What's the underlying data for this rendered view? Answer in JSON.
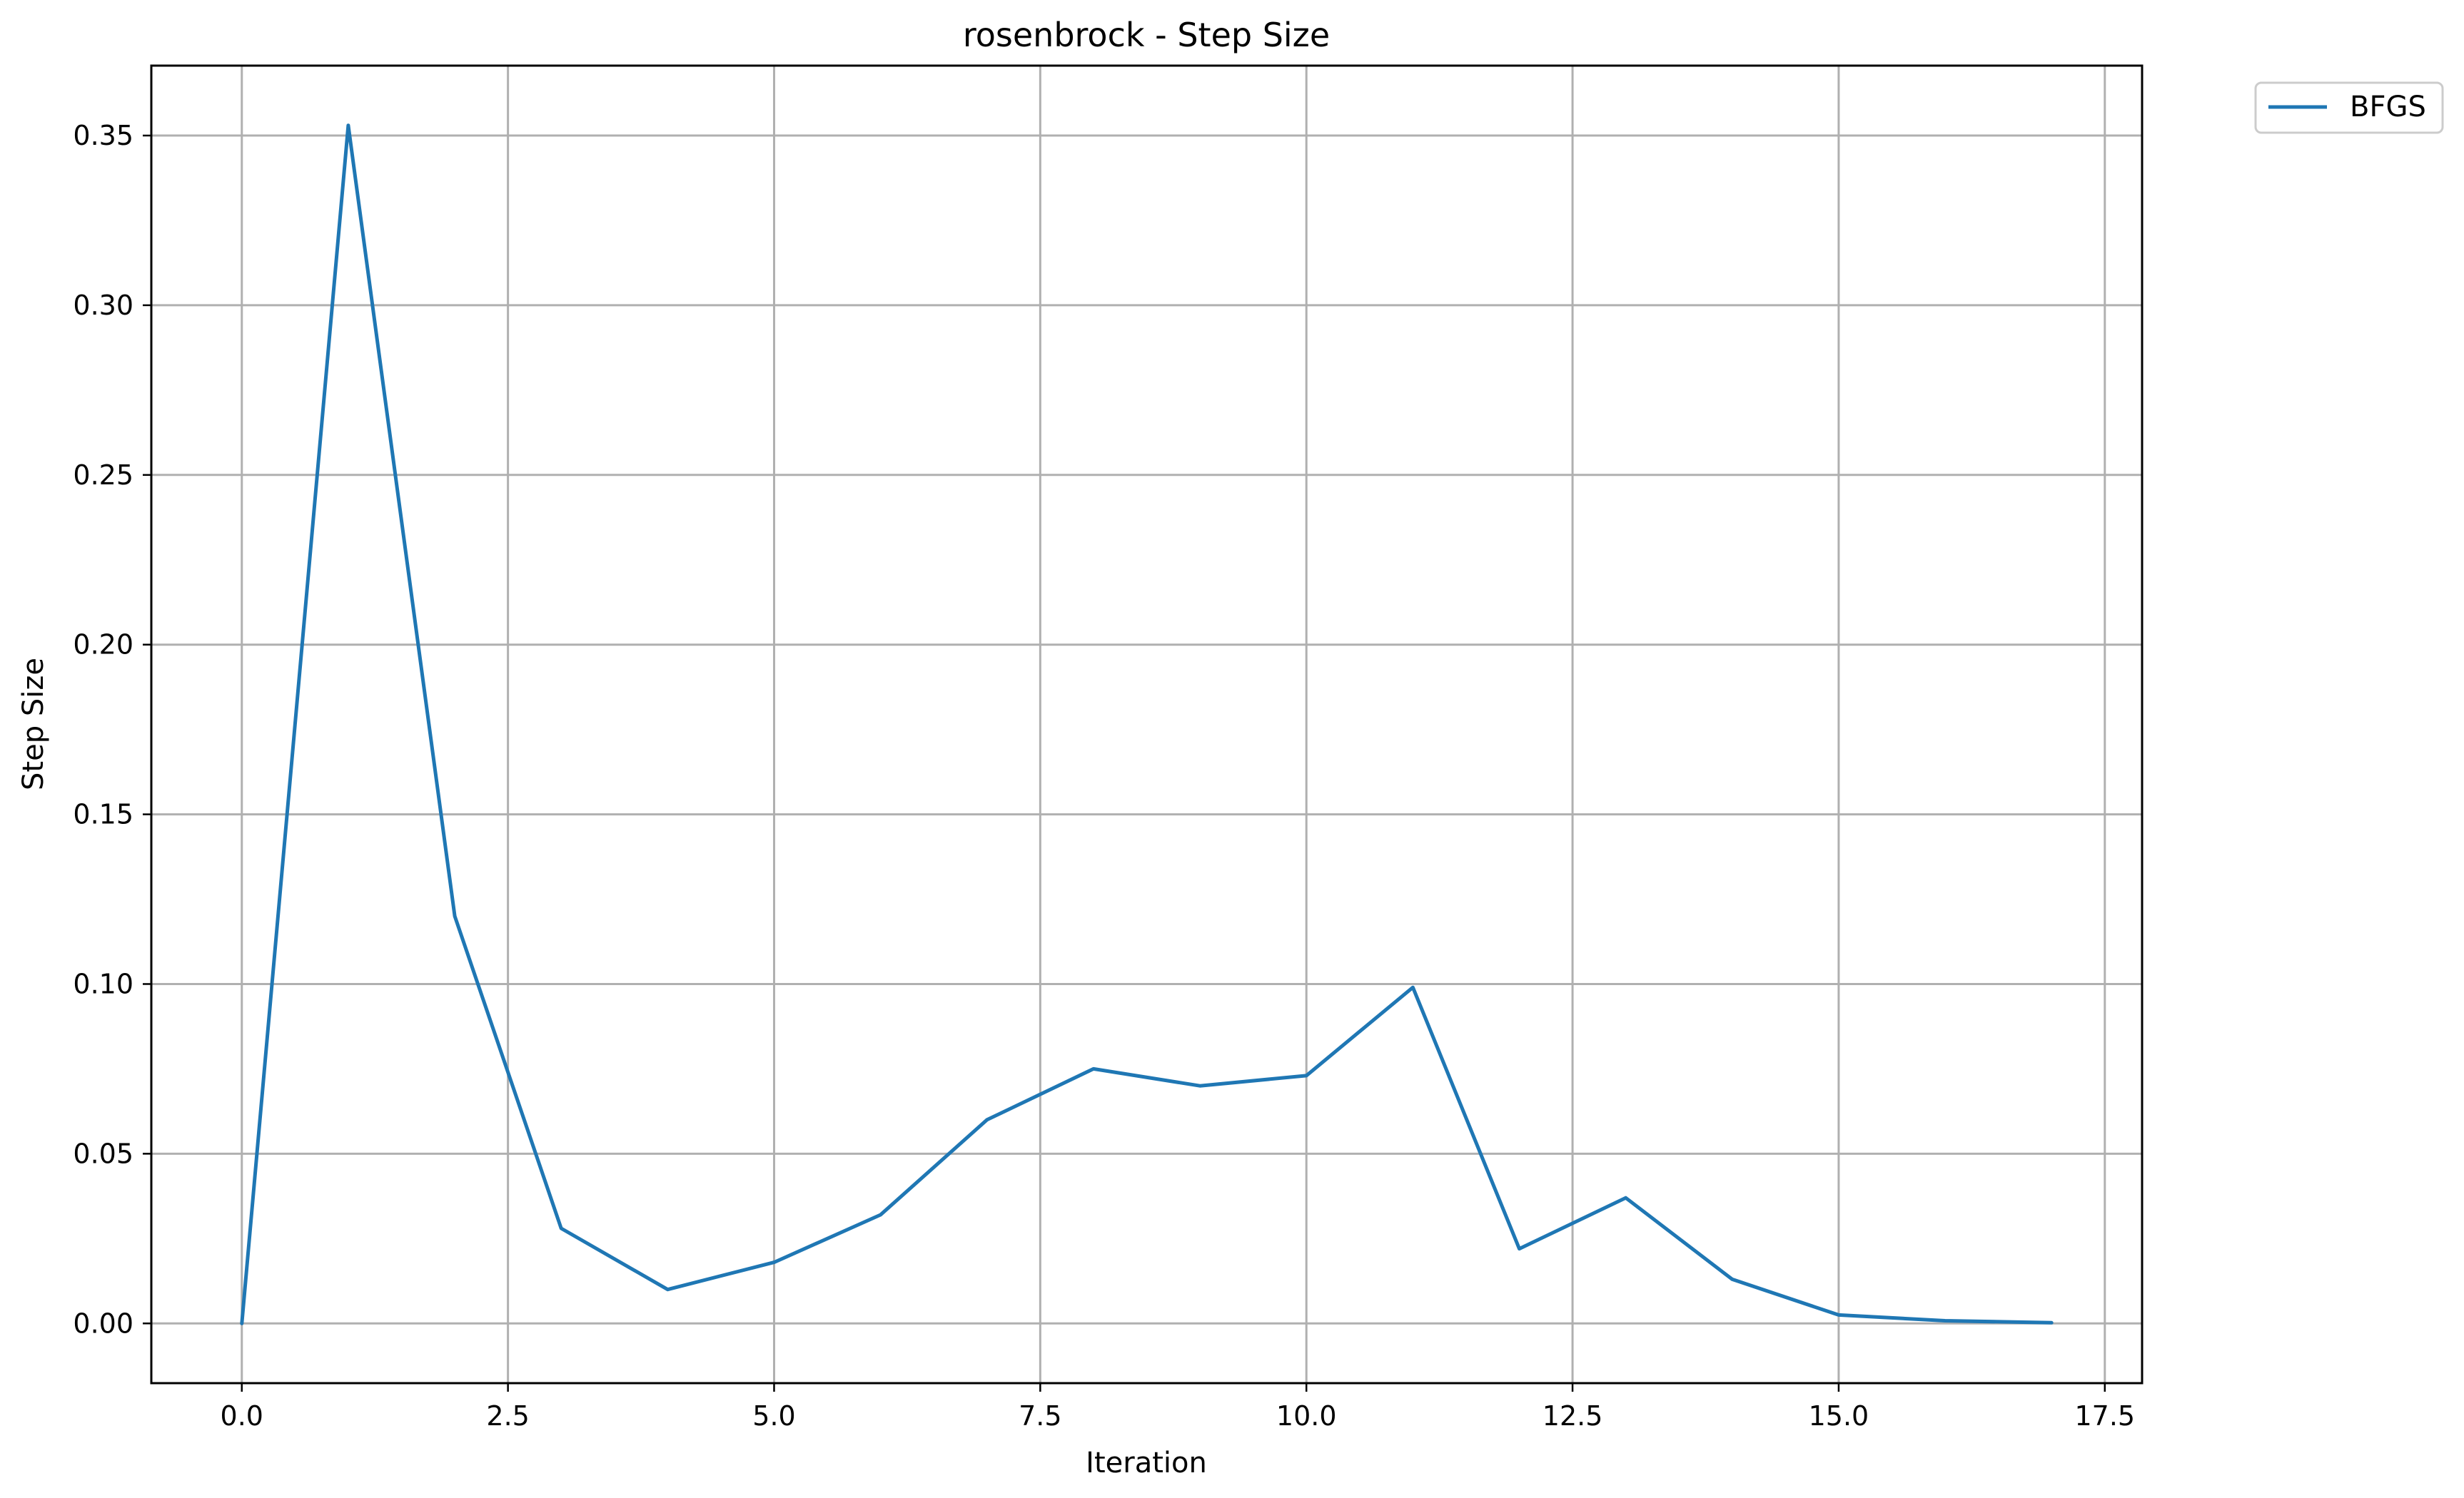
{
  "chart_data": {
    "type": "line",
    "title": "rosenbrock - Step Size",
    "xlabel": "Iteration",
    "ylabel": "Step Size",
    "xlim": [
      -0.85,
      17.85
    ],
    "ylim": [
      -0.0176,
      0.3706
    ],
    "grid": true,
    "legend_position": "outside-top-right",
    "x_ticks": [
      0.0,
      2.5,
      5.0,
      7.5,
      10.0,
      12.5,
      15.0,
      17.5
    ],
    "x_tick_labels": [
      "0.0",
      "2.5",
      "5.0",
      "7.5",
      "10.0",
      "12.5",
      "15.0",
      "17.5"
    ],
    "y_ticks": [
      0.0,
      0.05,
      0.1,
      0.15,
      0.2,
      0.25,
      0.3,
      0.35
    ],
    "y_tick_labels": [
      "0.00",
      "0.05",
      "0.10",
      "0.15",
      "0.20",
      "0.25",
      "0.30",
      "0.35"
    ],
    "x": [
      0,
      1,
      2,
      3,
      4,
      5,
      6,
      7,
      8,
      9,
      10,
      11,
      12,
      13,
      14,
      15,
      16,
      17
    ],
    "series": [
      {
        "name": "BFGS",
        "color": "#1f77b4",
        "values": [
          0.0,
          0.353,
          0.12,
          0.028,
          0.01,
          0.018,
          0.032,
          0.06,
          0.075,
          0.07,
          0.073,
          0.099,
          0.022,
          0.037,
          0.013,
          0.0025,
          0.0008,
          0.0002
        ]
      }
    ]
  }
}
